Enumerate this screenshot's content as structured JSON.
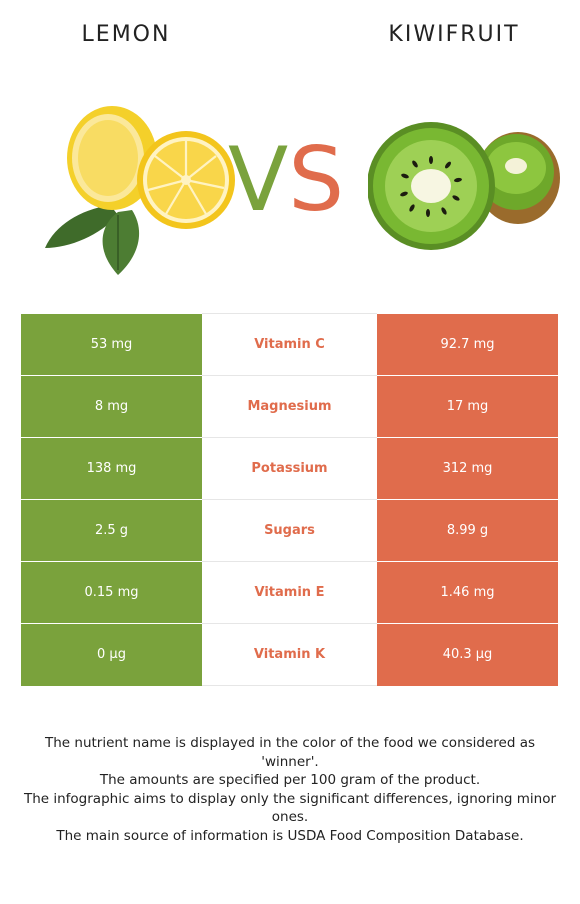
{
  "foods": {
    "left": {
      "name": "LEMON",
      "color": "#7aa23c",
      "icon": "lemon-icon"
    },
    "right": {
      "name": "KIWIFRUIT",
      "color": "#e06c4c",
      "icon": "kiwifruit-icon"
    }
  },
  "vs": {
    "v": "V",
    "s": "S"
  },
  "rows": [
    {
      "left": "53 mg",
      "nutrient": "Vitamin C",
      "right": "92.7 mg",
      "winner": "right"
    },
    {
      "left": "8 mg",
      "nutrient": "Magnesium",
      "right": "17 mg",
      "winner": "right"
    },
    {
      "left": "138 mg",
      "nutrient": "Potassium",
      "right": "312 mg",
      "winner": "right"
    },
    {
      "left": "2.5 g",
      "nutrient": "Sugars",
      "right": "8.99 g",
      "winner": "right"
    },
    {
      "left": "0.15 mg",
      "nutrient": "Vitamin E",
      "right": "1.46 mg",
      "winner": "right"
    },
    {
      "left": "0 µg",
      "nutrient": "Vitamin K",
      "right": "40.3 µg",
      "winner": "right"
    }
  ],
  "footer": [
    "The nutrient name is displayed in the color of the food we considered as 'winner'.",
    "The amounts are specified per 100 gram of the product.",
    "The infographic aims to display only the significant differences, ignoring minor ones.",
    "The main source of information is USDA Food Composition Database."
  ]
}
